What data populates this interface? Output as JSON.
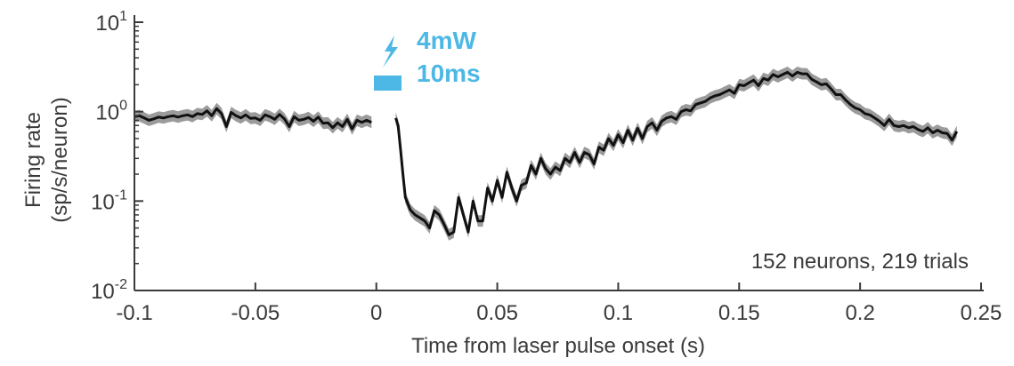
{
  "chart_data": {
    "type": "line",
    "xlabel": "Time from laser pulse onset (s)",
    "ylabel_lines": [
      "Firing rate",
      "(sp/s/neuron)"
    ],
    "xlim": [
      -0.1,
      0.25
    ],
    "ylim": [
      0.01,
      10
    ],
    "yscale": "log",
    "x_ticks": [
      -0.1,
      -0.05,
      0,
      0.05,
      0.1,
      0.15,
      0.2,
      0.25
    ],
    "x_tick_labels": [
      "-0.1",
      "-0.05",
      "0",
      "0.05",
      "0.1",
      "0.15",
      "0.2",
      "0.25"
    ],
    "y_ticks": [
      {
        "value": 10,
        "base": "10",
        "exp": "1"
      },
      {
        "value": 1,
        "base": "10",
        "exp": "0"
      },
      {
        "value": 0.1,
        "base": "10",
        "exp": "-1"
      },
      {
        "value": 0.01,
        "base": "10",
        "exp": "-2"
      }
    ],
    "grid": false,
    "annotation": "152 neurons, 219 trials",
    "stimulus": {
      "line1": "4mW",
      "line2": "10ms",
      "color": "#4db8e6"
    },
    "line_color": "#111111",
    "band_color": "#8a8a8a",
    "series": [
      {
        "segments": [
          [
            [
              -0.1,
              0.88
            ],
            [
              -0.098,
              0.9
            ],
            [
              -0.096,
              0.85
            ],
            [
              -0.094,
              0.8
            ],
            [
              -0.092,
              0.83
            ],
            [
              -0.09,
              0.87
            ],
            [
              -0.088,
              0.85
            ],
            [
              -0.086,
              0.88
            ],
            [
              -0.084,
              0.9
            ],
            [
              -0.082,
              0.87
            ],
            [
              -0.08,
              0.9
            ],
            [
              -0.078,
              0.92
            ],
            [
              -0.076,
              0.88
            ],
            [
              -0.074,
              0.95
            ],
            [
              -0.072,
              0.93
            ],
            [
              -0.07,
              1.02
            ],
            [
              -0.068,
              0.9
            ],
            [
              -0.066,
              1.08
            ],
            [
              -0.064,
              0.95
            ],
            [
              -0.062,
              0.68
            ],
            [
              -0.06,
              0.98
            ],
            [
              -0.058,
              0.9
            ],
            [
              -0.056,
              0.85
            ],
            [
              -0.054,
              0.92
            ],
            [
              -0.052,
              0.84
            ],
            [
              -0.05,
              0.85
            ],
            [
              -0.048,
              0.8
            ],
            [
              -0.046,
              0.92
            ],
            [
              -0.044,
              0.88
            ],
            [
              -0.042,
              0.82
            ],
            [
              -0.04,
              0.93
            ],
            [
              -0.038,
              0.83
            ],
            [
              -0.036,
              0.68
            ],
            [
              -0.034,
              0.88
            ],
            [
              -0.032,
              0.8
            ],
            [
              -0.03,
              0.82
            ],
            [
              -0.028,
              0.86
            ],
            [
              -0.026,
              0.78
            ],
            [
              -0.024,
              0.87
            ],
            [
              -0.022,
              0.74
            ],
            [
              -0.02,
              0.75
            ],
            [
              -0.018,
              0.66
            ],
            [
              -0.016,
              0.75
            ],
            [
              -0.014,
              0.68
            ],
            [
              -0.012,
              0.82
            ],
            [
              -0.01,
              0.64
            ],
            [
              -0.008,
              0.8
            ],
            [
              -0.006,
              0.76
            ],
            [
              -0.004,
              0.8
            ],
            [
              -0.002,
              0.76
            ]
          ],
          [
            [
              0.008,
              0.85
            ],
            [
              0.009,
              0.7
            ],
            [
              0.01,
              0.38
            ],
            [
              0.011,
              0.2
            ],
            [
              0.012,
              0.11
            ],
            [
              0.014,
              0.08
            ],
            [
              0.016,
              0.07
            ],
            [
              0.018,
              0.065
            ],
            [
              0.02,
              0.06
            ],
            [
              0.022,
              0.05
            ],
            [
              0.024,
              0.078
            ],
            [
              0.026,
              0.07
            ],
            [
              0.028,
              0.055
            ],
            [
              0.03,
              0.042
            ],
            [
              0.032,
              0.045
            ],
            [
              0.034,
              0.11
            ],
            [
              0.036,
              0.07
            ],
            [
              0.038,
              0.045
            ],
            [
              0.04,
              0.1
            ],
            [
              0.042,
              0.06
            ],
            [
              0.044,
              0.06
            ],
            [
              0.046,
              0.14
            ],
            [
              0.048,
              0.1
            ],
            [
              0.05,
              0.17
            ],
            [
              0.052,
              0.11
            ],
            [
              0.054,
              0.21
            ],
            [
              0.056,
              0.14
            ],
            [
              0.058,
              0.1
            ],
            [
              0.06,
              0.15
            ],
            [
              0.062,
              0.16
            ],
            [
              0.064,
              0.25
            ],
            [
              0.066,
              0.2
            ],
            [
              0.068,
              0.3
            ],
            [
              0.07,
              0.23
            ],
            [
              0.072,
              0.2
            ],
            [
              0.074,
              0.24
            ],
            [
              0.076,
              0.22
            ],
            [
              0.078,
              0.3
            ],
            [
              0.08,
              0.27
            ],
            [
              0.082,
              0.35
            ],
            [
              0.084,
              0.27
            ],
            [
              0.086,
              0.35
            ],
            [
              0.088,
              0.33
            ],
            [
              0.09,
              0.26
            ],
            [
              0.092,
              0.4
            ],
            [
              0.094,
              0.37
            ],
            [
              0.096,
              0.5
            ],
            [
              0.098,
              0.42
            ],
            [
              0.1,
              0.55
            ],
            [
              0.102,
              0.45
            ],
            [
              0.104,
              0.62
            ],
            [
              0.106,
              0.48
            ],
            [
              0.108,
              0.65
            ],
            [
              0.11,
              0.5
            ],
            [
              0.112,
              0.68
            ],
            [
              0.114,
              0.75
            ],
            [
              0.116,
              0.62
            ],
            [
              0.118,
              0.78
            ],
            [
              0.12,
              0.85
            ],
            [
              0.122,
              0.88
            ],
            [
              0.124,
              0.82
            ],
            [
              0.126,
              1.0
            ],
            [
              0.128,
              1.05
            ],
            [
              0.13,
              1.02
            ],
            [
              0.132,
              1.2
            ],
            [
              0.134,
              1.25
            ],
            [
              0.136,
              1.3
            ],
            [
              0.138,
              1.42
            ],
            [
              0.14,
              1.5
            ],
            [
              0.142,
              1.55
            ],
            [
              0.144,
              1.65
            ],
            [
              0.146,
              1.75
            ],
            [
              0.148,
              1.6
            ],
            [
              0.15,
              2.0
            ],
            [
              0.152,
              1.95
            ],
            [
              0.154,
              2.1
            ],
            [
              0.156,
              2.25
            ],
            [
              0.158,
              1.95
            ],
            [
              0.16,
              2.35
            ],
            [
              0.162,
              2.25
            ],
            [
              0.164,
              2.6
            ],
            [
              0.166,
              2.45
            ],
            [
              0.168,
              2.6
            ],
            [
              0.17,
              2.75
            ],
            [
              0.172,
              2.5
            ],
            [
              0.174,
              2.75
            ],
            [
              0.176,
              2.65
            ],
            [
              0.178,
              2.65
            ],
            [
              0.18,
              2.3
            ],
            [
              0.182,
              2.15
            ],
            [
              0.184,
              2.0
            ],
            [
              0.186,
              2.05
            ],
            [
              0.188,
              1.8
            ],
            [
              0.19,
              1.55
            ],
            [
              0.192,
              1.55
            ],
            [
              0.194,
              1.35
            ],
            [
              0.196,
              1.2
            ],
            [
              0.198,
              1.1
            ],
            [
              0.2,
              1.05
            ],
            [
              0.202,
              0.95
            ],
            [
              0.204,
              0.92
            ],
            [
              0.206,
              0.85
            ],
            [
              0.208,
              0.78
            ],
            [
              0.21,
              0.7
            ],
            [
              0.212,
              0.82
            ],
            [
              0.214,
              0.7
            ],
            [
              0.216,
              0.68
            ],
            [
              0.218,
              0.7
            ],
            [
              0.22,
              0.66
            ],
            [
              0.222,
              0.68
            ],
            [
              0.224,
              0.63
            ],
            [
              0.226,
              0.6
            ],
            [
              0.228,
              0.66
            ],
            [
              0.23,
              0.58
            ],
            [
              0.232,
              0.62
            ],
            [
              0.234,
              0.58
            ],
            [
              0.236,
              0.57
            ],
            [
              0.238,
              0.48
            ],
            [
              0.24,
              0.6
            ]
          ]
        ]
      }
    ]
  }
}
